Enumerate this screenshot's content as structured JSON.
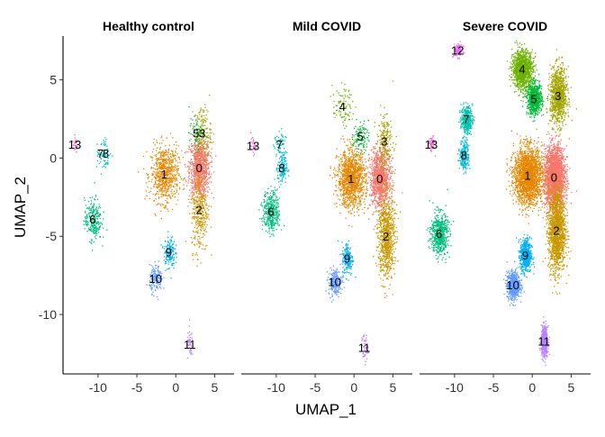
{
  "chart_data": {
    "type": "scatter",
    "xlabel": "UMAP_1",
    "ylabel": "UMAP_2",
    "xlim": [
      -14.5,
      7.5
    ],
    "ylim": [
      -13.8,
      7.8
    ],
    "x_ticks": [
      -10,
      -5,
      0,
      5
    ],
    "y_ticks": [
      5,
      0,
      -5,
      -10
    ],
    "x_tick_labels": [
      "-10",
      "-5",
      "0",
      "5"
    ],
    "y_tick_labels": [
      "5",
      "0",
      "-5",
      "-10"
    ],
    "grid": false,
    "legend": "none",
    "facets": [
      {
        "title": "Healthy control",
        "clusters": [
          {
            "id": "0",
            "label_x": 3.0,
            "label_y": -0.6,
            "count": 900
          },
          {
            "id": "1",
            "label_x": -1.5,
            "label_y": -1.0,
            "count": 700
          },
          {
            "id": "2",
            "label_x": 3.0,
            "label_y": -3.3,
            "count": 350
          },
          {
            "id": "3",
            "label_x": 3.4,
            "label_y": 1.6,
            "count": 160
          },
          {
            "id": "5",
            "label_x": 2.6,
            "label_y": 1.6,
            "count": 60
          },
          {
            "id": "6",
            "label_x": -10.7,
            "label_y": -3.9,
            "count": 260
          },
          {
            "id": "7",
            "label_x": -9.7,
            "label_y": 0.3,
            "count": 30
          },
          {
            "id": "8",
            "label_x": -9.0,
            "label_y": 0.3,
            "count": 45
          },
          {
            "id": "9",
            "label_x": -0.9,
            "label_y": -6.0,
            "count": 150
          },
          {
            "id": "10",
            "label_x": -2.6,
            "label_y": -7.7,
            "count": 170
          },
          {
            "id": "11",
            "label_x": 1.8,
            "label_y": -11.9,
            "count": 40
          },
          {
            "id": "13",
            "label_x": -13.0,
            "label_y": 0.9,
            "count": 25
          }
        ]
      },
      {
        "title": "Mild COVID",
        "clusters": [
          {
            "id": "0",
            "label_x": 3.3,
            "label_y": -1.3,
            "count": 1000
          },
          {
            "id": "1",
            "label_x": -0.4,
            "label_y": -1.3,
            "count": 1200
          },
          {
            "id": "2",
            "label_x": 4.1,
            "label_y": -5.0,
            "count": 800
          },
          {
            "id": "3",
            "label_x": 3.9,
            "label_y": 1.1,
            "count": 200
          },
          {
            "id": "4",
            "label_x": -1.5,
            "label_y": 3.3,
            "count": 90
          },
          {
            "id": "5",
            "label_x": 0.8,
            "label_y": 1.4,
            "count": 110
          },
          {
            "id": "6",
            "label_x": -10.7,
            "label_y": -3.4,
            "count": 380
          },
          {
            "id": "7",
            "label_x": -9.6,
            "label_y": 0.9,
            "count": 60
          },
          {
            "id": "8",
            "label_x": -9.3,
            "label_y": -0.6,
            "count": 150
          },
          {
            "id": "9",
            "label_x": -0.9,
            "label_y": -6.4,
            "count": 190
          },
          {
            "id": "10",
            "label_x": -2.5,
            "label_y": -7.9,
            "count": 220
          },
          {
            "id": "11",
            "label_x": 1.3,
            "label_y": -12.1,
            "count": 50
          },
          {
            "id": "13",
            "label_x": -13.0,
            "label_y": 0.8,
            "count": 30
          }
        ]
      },
      {
        "title": "Severe COVID",
        "clusters": [
          {
            "id": "0",
            "label_x": 2.8,
            "label_y": -1.2,
            "count": 2200
          },
          {
            "id": "1",
            "label_x": -0.6,
            "label_y": -1.1,
            "count": 2000
          },
          {
            "id": "2",
            "label_x": 3.1,
            "label_y": -4.6,
            "count": 1500
          },
          {
            "id": "3",
            "label_x": 3.3,
            "label_y": 4.0,
            "count": 950
          },
          {
            "id": "4",
            "label_x": -1.3,
            "label_y": 5.7,
            "count": 1100
          },
          {
            "id": "5",
            "label_x": 0.2,
            "label_y": 3.8,
            "count": 700
          },
          {
            "id": "6",
            "label_x": -12.0,
            "label_y": -4.8,
            "count": 600
          },
          {
            "id": "7",
            "label_x": -8.5,
            "label_y": 2.5,
            "count": 380
          },
          {
            "id": "8",
            "label_x": -8.8,
            "label_y": 0.2,
            "count": 230
          },
          {
            "id": "9",
            "label_x": -0.9,
            "label_y": -6.2,
            "count": 550
          },
          {
            "id": "10",
            "label_x": -2.5,
            "label_y": -8.1,
            "count": 700
          },
          {
            "id": "11",
            "label_x": 1.5,
            "label_y": -11.7,
            "count": 500
          },
          {
            "id": "12",
            "label_x": -9.6,
            "label_y": 6.9,
            "count": 120
          },
          {
            "id": "13",
            "label_x": -13.0,
            "label_y": 0.9,
            "count": 60
          }
        ]
      }
    ],
    "cluster_colors": {
      "0": "#F8766D",
      "1": "#E58700",
      "2": "#C99800",
      "3": "#A3A500",
      "4": "#6BB100",
      "5": "#00BA38",
      "6": "#00BF7D",
      "7": "#00C0AF",
      "8": "#00BCD8",
      "9": "#00B0F6",
      "10": "#619CFF",
      "11": "#B983FF",
      "12": "#E76BF3",
      "13": "#FD61D1"
    }
  }
}
